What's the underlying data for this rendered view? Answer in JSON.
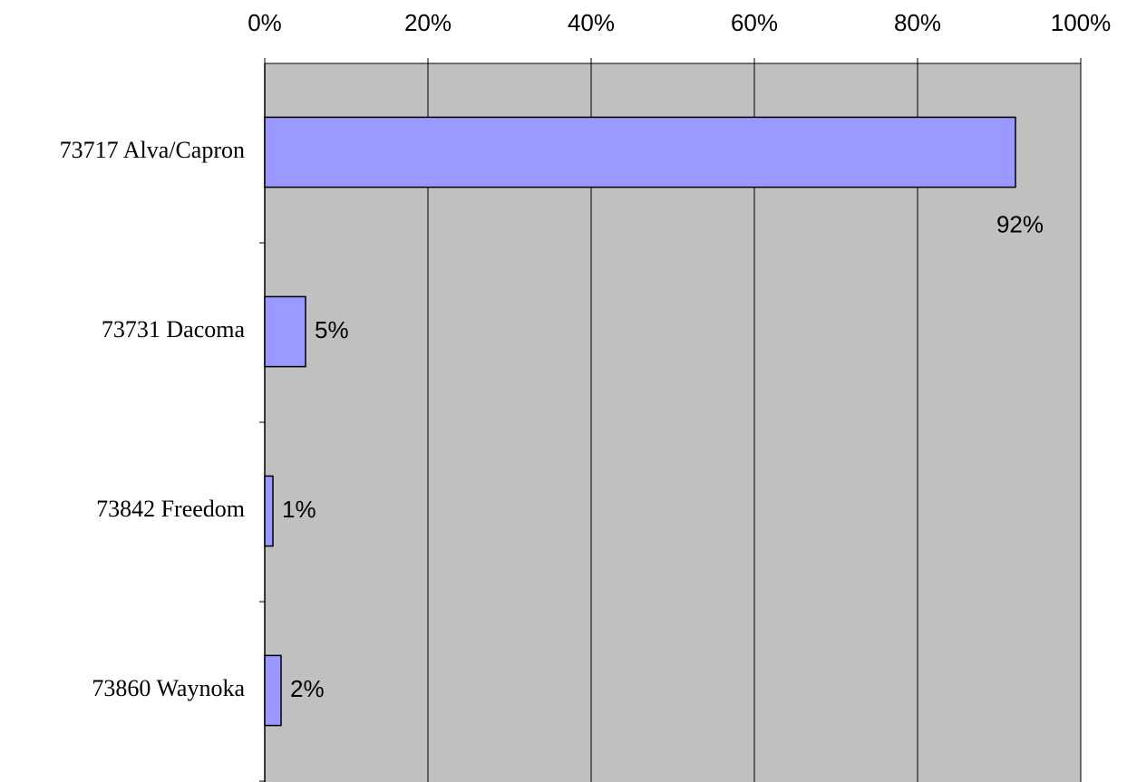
{
  "chart_data": {
    "type": "bar",
    "orientation": "horizontal",
    "categories": [
      "73717 Alva/Capron",
      "73731 Dacoma",
      "73842 Freedom",
      "73860 Waynoka"
    ],
    "values": [
      92,
      5,
      1,
      2
    ],
    "value_labels": [
      "92%",
      "5%",
      "1%",
      "2%"
    ],
    "color": "#9999ff",
    "xlim": [
      0,
      100
    ],
    "xticks": [
      {
        "value": 0,
        "label": "0%"
      },
      {
        "value": 20,
        "label": "20%"
      },
      {
        "value": 40,
        "label": "40%"
      },
      {
        "value": 60,
        "label": "60%"
      },
      {
        "value": 80,
        "label": "80%"
      },
      {
        "value": 100,
        "label": "100%"
      }
    ],
    "grid": true
  }
}
